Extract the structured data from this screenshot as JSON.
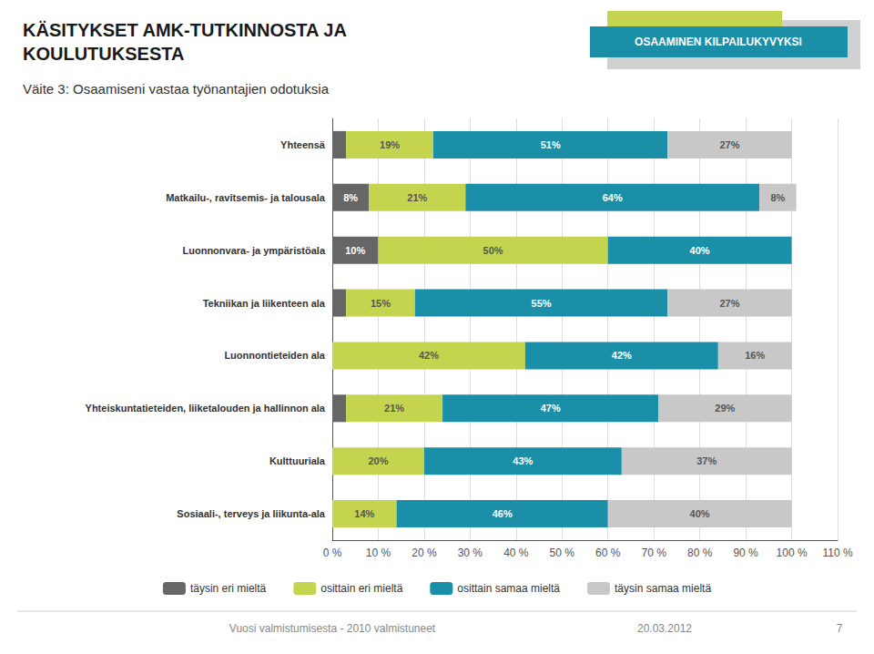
{
  "chart_data": {
    "type": "bar",
    "orientation": "horizontal",
    "stacked": true,
    "title": "KÄSITYKSET AMK-TUTKINNOSTA JA\nKOULUTUKSESTA",
    "subtitle": "Väite 3: Osaamiseni vastaa työnantajien odotuksia",
    "annotations": [
      "OSAAMINEN KILPAILUKYVYKSI",
      "Vuosi valmistumisesta - 2010 valmistuneet",
      "20.03.2012",
      "7"
    ],
    "categories": [
      "Yhteensä",
      "Matkailu-, ravitsemis- ja talousala",
      "Luonnonvara- ja ympäristöala",
      "Tekniikan ja liikenteen ala",
      "Luonnontieteiden ala",
      "Yhteiskuntatieteiden, liiketalouden ja hallinnon ala",
      "Kulttuuriala",
      "Sosiaali-, terveys ja liikunta-ala"
    ],
    "series": [
      {
        "name": "täysin eri mieltä",
        "color": "#666666",
        "values": [
          3,
          8,
          10,
          3,
          0,
          3,
          0,
          0
        ],
        "value_labels": [
          null,
          "8%",
          "10%",
          null,
          null,
          null,
          null,
          null
        ]
      },
      {
        "name": "osittain eri mieltä",
        "color": "#c5d44e",
        "values": [
          19,
          21,
          50,
          15,
          42,
          21,
          20,
          14
        ],
        "value_labels": [
          "19%",
          "21%",
          "50%",
          "15%",
          "42%",
          "21%",
          "20%",
          "14%"
        ]
      },
      {
        "name": "osittain samaa mieltä",
        "color": "#1b8fa8",
        "values": [
          51,
          64,
          40,
          55,
          42,
          47,
          43,
          46
        ],
        "value_labels": [
          "51%",
          "64%",
          "40%",
          "55%",
          "42%",
          "47%",
          "43%",
          "46%"
        ]
      },
      {
        "name": "täysin samaa mieltä",
        "color": "#c8c8c8",
        "values": [
          27,
          8,
          0,
          27,
          16,
          29,
          37,
          40
        ],
        "value_labels": [
          "27%",
          "8%",
          null,
          "27%",
          "16%",
          "29%",
          "37%",
          "40%"
        ]
      }
    ],
    "xlim": [
      0,
      110
    ],
    "xticks": [
      {
        "value": 0,
        "label": "0 %"
      },
      {
        "value": 10,
        "label": "10 %"
      },
      {
        "value": 20,
        "label": "20 %"
      },
      {
        "value": 30,
        "label": "30 %"
      },
      {
        "value": 40,
        "label": "40 %"
      },
      {
        "value": 50,
        "label": "50 %"
      },
      {
        "value": 60,
        "label": "60 %"
      },
      {
        "value": 70,
        "label": "70 %"
      },
      {
        "value": 80,
        "label": "80 %"
      },
      {
        "value": 90,
        "label": "90 %"
      },
      {
        "value": 100,
        "label": "100 %"
      },
      {
        "value": 110,
        "label": "110 %"
      }
    ],
    "grid": true,
    "legend": "bottom",
    "data_labels": true
  }
}
